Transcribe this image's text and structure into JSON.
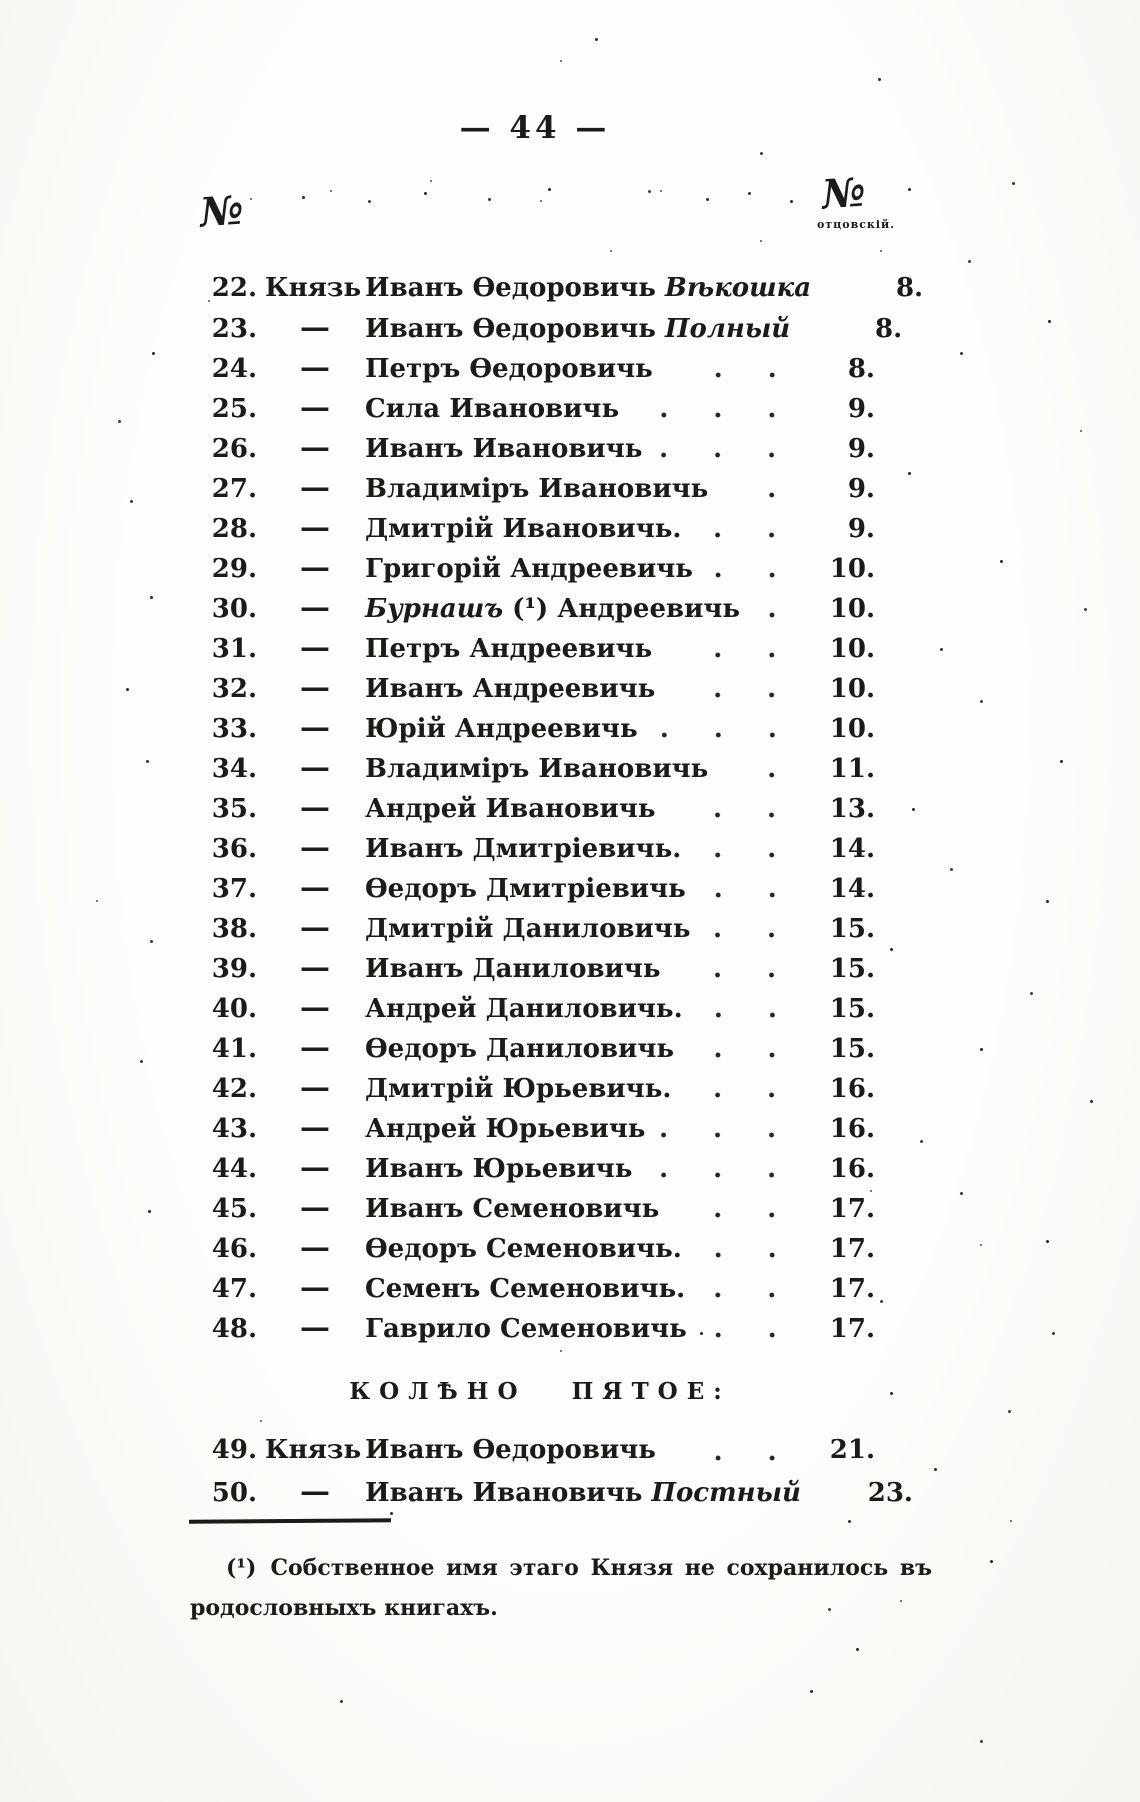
{
  "page_header": {
    "page_number": "— 44 —",
    "left_column_symbol": "№",
    "right_column_symbol": "№",
    "right_column_caption": "отцовскій."
  },
  "entries": [
    {
      "num": "22.",
      "prefix": "Князь",
      "lead_italic": "",
      "name": "Иванъ Ѳедоровичь",
      "epithet": "Вѣкошка",
      "father_no": "8."
    },
    {
      "num": "23.",
      "prefix": "—",
      "lead_italic": "",
      "name": "Иванъ Ѳедоровичь",
      "epithet": "Полный",
      "father_no": "8."
    },
    {
      "num": "24.",
      "prefix": "—",
      "lead_italic": "",
      "name": "Петръ Ѳедоровичь",
      "epithet": "",
      "father_no": "8."
    },
    {
      "num": "25.",
      "prefix": "—",
      "lead_italic": "",
      "name": "Сила Ивановичь",
      "epithet": "",
      "father_no": "9."
    },
    {
      "num": "26.",
      "prefix": "—",
      "lead_italic": "",
      "name": "Иванъ Ивановичь",
      "epithet": "",
      "father_no": "9."
    },
    {
      "num": "27.",
      "prefix": "—",
      "lead_italic": "",
      "name": "Владиміръ Ивановичь",
      "epithet": "",
      "father_no": "9."
    },
    {
      "num": "28.",
      "prefix": "—",
      "lead_italic": "",
      "name": "Дмитрій Ивановичь.",
      "epithet": "",
      "father_no": "9."
    },
    {
      "num": "29.",
      "prefix": "—",
      "lead_italic": "",
      "name": "Григорій Андреевичь",
      "epithet": "",
      "father_no": "10."
    },
    {
      "num": "30.",
      "prefix": "—",
      "lead_italic": "Бурнашъ",
      "name": "(¹) Андреевичь",
      "epithet": "",
      "father_no": "10."
    },
    {
      "num": "31.",
      "prefix": "—",
      "lead_italic": "",
      "name": "Петръ Андреевичь",
      "epithet": "",
      "father_no": "10."
    },
    {
      "num": "32.",
      "prefix": "—",
      "lead_italic": "",
      "name": "Иванъ Андреевичь",
      "epithet": "",
      "father_no": "10."
    },
    {
      "num": "33.",
      "prefix": "—",
      "lead_italic": "",
      "name": "Юрій Андреевичь",
      "epithet": "",
      "father_no": "10."
    },
    {
      "num": "34.",
      "prefix": "—",
      "lead_italic": "",
      "name": "Владиміръ Ивановичь",
      "epithet": "",
      "father_no": "11."
    },
    {
      "num": "35.",
      "prefix": "—",
      "lead_italic": "",
      "name": "Андрей Ивановичь",
      "epithet": "",
      "father_no": "13."
    },
    {
      "num": "36.",
      "prefix": "—",
      "lead_italic": "",
      "name": "Иванъ Дмитріевичь.",
      "epithet": "",
      "father_no": "14."
    },
    {
      "num": "37.",
      "prefix": "—",
      "lead_italic": "",
      "name": "Ѳедоръ Дмитріевичь",
      "epithet": "",
      "father_no": "14."
    },
    {
      "num": "38.",
      "prefix": "—",
      "lead_italic": "",
      "name": "Дмитрій Даниловичь",
      "epithet": "",
      "father_no": "15."
    },
    {
      "num": "39.",
      "prefix": "—",
      "lead_italic": "",
      "name": "Иванъ Даниловичь",
      "epithet": "",
      "father_no": "15."
    },
    {
      "num": "40.",
      "prefix": "—",
      "lead_italic": "",
      "name": "Андрей Даниловичь.",
      "epithet": "",
      "father_no": "15."
    },
    {
      "num": "41.",
      "prefix": "—",
      "lead_italic": "",
      "name": "Ѳедоръ Даниловичь",
      "epithet": "",
      "father_no": "15."
    },
    {
      "num": "42.",
      "prefix": "—",
      "lead_italic": "",
      "name": "Дмитрій Юрьевичь.",
      "epithet": "",
      "father_no": "16."
    },
    {
      "num": "43.",
      "prefix": "—",
      "lead_italic": "",
      "name": "Андрей Юрьевичь",
      "epithet": "",
      "father_no": "16."
    },
    {
      "num": "44.",
      "prefix": "—",
      "lead_italic": "",
      "name": "Иванъ Юрьевичь",
      "epithet": "",
      "father_no": "16."
    },
    {
      "num": "45.",
      "prefix": "—",
      "lead_italic": "",
      "name": "Иванъ Семеновичь",
      "epithet": "",
      "father_no": "17."
    },
    {
      "num": "46.",
      "prefix": "—",
      "lead_italic": "",
      "name": "Ѳедоръ Семеновичь.",
      "epithet": "",
      "father_no": "17."
    },
    {
      "num": "47.",
      "prefix": "—",
      "lead_italic": "",
      "name": "Семенъ Семеновичь.",
      "epithet": "",
      "father_no": "17."
    },
    {
      "num": "48.",
      "prefix": "—",
      "lead_italic": "",
      "name": "Гаврило Семеновичь",
      "epithet": "",
      "father_no": "17."
    }
  ],
  "section_heading": "КОЛѢНО ПЯТОЕ:",
  "entries2": [
    {
      "num": "49.",
      "prefix": "Князь",
      "lead_italic": "",
      "name": "Иванъ Ѳедоровичь",
      "epithet": "",
      "father_no": "21."
    },
    {
      "num": "50.",
      "prefix": "—",
      "lead_italic": "",
      "name": "Иванъ Ивановичь",
      "epithet": "Постный",
      "father_no": "23."
    }
  ],
  "footnote": {
    "mark": "(¹)",
    "text": "Собственное имя этаго Князя не сохранилось въ родословныхъ книгахъ."
  },
  "ink_color": "#1d1b18"
}
